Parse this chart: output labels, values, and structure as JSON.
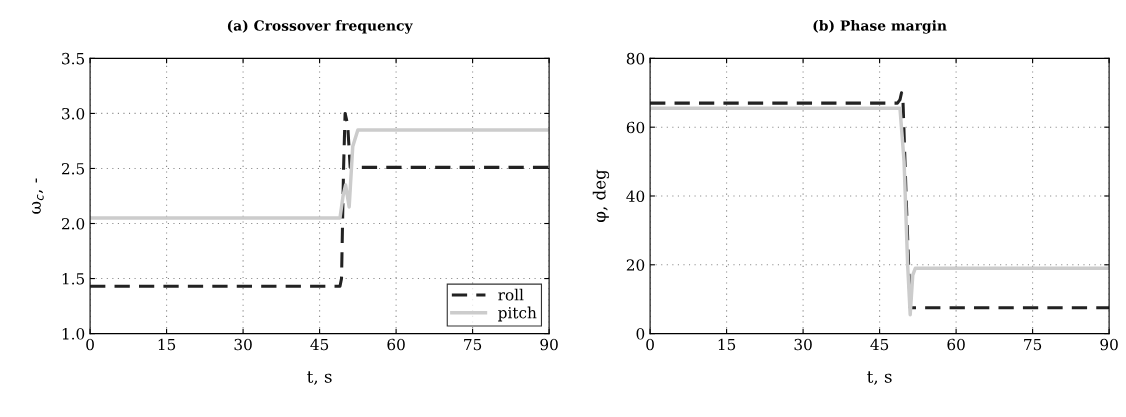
{
  "chart_data": [
    {
      "type": "line",
      "title": "(a) Crossover frequency",
      "xlabel": "t, s",
      "ylabel": "ω$_{c}$, -",
      "xlim": [
        0,
        90
      ],
      "xticks": [
        0,
        15,
        30,
        45,
        60,
        75,
        90
      ],
      "ylim": [
        1.0,
        3.5
      ],
      "yticks": [
        {
          "value": 1.0,
          "label": "1.0"
        },
        {
          "value": 1.5,
          "label": "1.5"
        },
        {
          "value": 2.0,
          "label": "2.0"
        },
        {
          "value": 2.5,
          "label": "2.5"
        },
        {
          "value": 3.0,
          "label": "3.0"
        },
        {
          "value": 3.5,
          "label": "3.5"
        }
      ],
      "grid": true,
      "legend": "bottom right",
      "series": [
        {
          "name": "roll",
          "color": "#222222",
          "line_style": "dashed",
          "x": [
            0,
            49,
            49.3,
            49.7,
            50,
            50.5,
            51,
            90
          ],
          "values": [
            1.43,
            1.43,
            1.5,
            2.5,
            3.0,
            2.9,
            2.51,
            2.51
          ]
        },
        {
          "name": "pitch",
          "color": "#cccccc",
          "line_style": "solid",
          "x": [
            0,
            49,
            49.6,
            50.1,
            50.8,
            51.5,
            52.5,
            90
          ],
          "values": [
            2.05,
            2.05,
            2.25,
            2.35,
            2.15,
            2.7,
            2.85,
            2.85
          ]
        }
      ]
    },
    {
      "type": "line",
      "title": "(b) Phase margin",
      "xlabel": "t, s",
      "ylabel": "φ, deg",
      "xlim": [
        0,
        90
      ],
      "xticks": [
        0,
        15,
        30,
        45,
        60,
        75,
        90
      ],
      "ylim": [
        0,
        80
      ],
      "yticks": [
        0,
        20,
        40,
        60,
        80
      ],
      "grid": true,
      "series": [
        {
          "color": "#222222",
          "line_style": "dashed",
          "x": [
            0,
            48.5,
            49,
            49.3,
            49.6,
            50.2,
            51,
            90
          ],
          "values": [
            67,
            67,
            68,
            70,
            67,
            40,
            7.5,
            7.5
          ]
        },
        {
          "color": "#cccccc",
          "line_style": "solid",
          "x": [
            0,
            49,
            49.8,
            50.5,
            51,
            51.5,
            52,
            90
          ],
          "values": [
            65.5,
            65.5,
            50,
            20,
            5.5,
            17,
            19,
            19
          ]
        }
      ]
    }
  ]
}
